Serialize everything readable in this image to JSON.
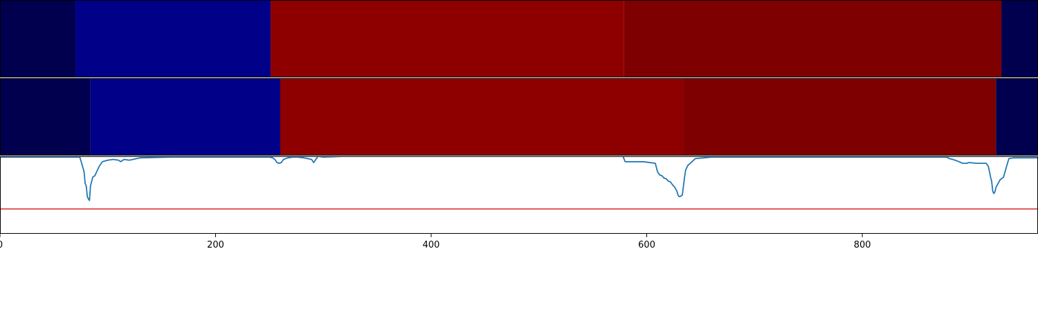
{
  "chart_data": {
    "type": "heatmap",
    "title": "",
    "xlabel": "",
    "ylabel": "",
    "xlim": [
      0,
      963
    ],
    "xticks": [
      0,
      200,
      400,
      600,
      800
    ],
    "xtick_labels": [
      "0",
      "200",
      "400",
      "600",
      "800"
    ],
    "segment_rows": [
      {
        "segments": [
          {
            "start": 0,
            "end": 70,
            "color": "#00004e"
          },
          {
            "start": 70,
            "end": 251,
            "color": "#000088"
          },
          {
            "start": 251,
            "end": 579,
            "color": "#8e0000"
          },
          {
            "start": 579,
            "end": 929,
            "color": "#7f0000"
          },
          {
            "start": 929,
            "end": 963,
            "color": "#00004e"
          }
        ]
      },
      {
        "segments": [
          {
            "start": 0,
            "end": 84,
            "color": "#00004e"
          },
          {
            "start": 84,
            "end": 260,
            "color": "#000088"
          },
          {
            "start": 260,
            "end": 634,
            "color": "#8e0000"
          },
          {
            "start": 634,
            "end": 924,
            "color": "#7f0000"
          },
          {
            "start": 924,
            "end": 963,
            "color": "#00004e"
          }
        ]
      }
    ],
    "line_ylim": [
      0,
      1
    ],
    "threshold": {
      "value": 0.32,
      "color": "#d62728"
    },
    "series": [
      {
        "color": "#1f77b4",
        "x": [
          0,
          60,
          74,
          76,
          78,
          79,
          80,
          81,
          82,
          83,
          84,
          86,
          88,
          92,
          95,
          100,
          105,
          110,
          112,
          115,
          120,
          130,
          160,
          200,
          240,
          250,
          253,
          255,
          257,
          259,
          261,
          263,
          267,
          272,
          276,
          282,
          289,
          291,
          293,
          295,
          300,
          320,
          400,
          500,
          578,
          580,
          582,
          590,
          597,
          608,
          610,
          612,
          614,
          616,
          618,
          620,
          622,
          624,
          626,
          628,
          629,
          630,
          631,
          633,
          635,
          636,
          638,
          645,
          660,
          700,
          800,
          878,
          881,
          884,
          888,
          893,
          897,
          899,
          906,
          915,
          917,
          919,
          920,
          921,
          922,
          923,
          924,
          926,
          928,
          931,
          933,
          936,
          940,
          963
        ],
        "y": [
          0.99,
          0.99,
          0.99,
          0.9,
          0.8,
          0.65,
          0.62,
          0.48,
          0.45,
          0.43,
          0.62,
          0.73,
          0.75,
          0.87,
          0.93,
          0.95,
          0.96,
          0.95,
          0.93,
          0.96,
          0.95,
          0.98,
          0.99,
          0.99,
          0.99,
          0.99,
          0.98,
          0.96,
          0.92,
          0.91,
          0.92,
          0.96,
          0.98,
          0.99,
          0.99,
          0.98,
          0.96,
          0.92,
          0.96,
          1.0,
          0.99,
          1.0,
          1.0,
          1.0,
          1.0,
          0.93,
          0.93,
          0.93,
          0.93,
          0.91,
          0.8,
          0.76,
          0.75,
          0.72,
          0.71,
          0.68,
          0.67,
          0.63,
          0.6,
          0.55,
          0.5,
          0.48,
          0.48,
          0.5,
          0.72,
          0.82,
          0.88,
          0.97,
          0.99,
          0.99,
          0.99,
          0.99,
          0.97,
          0.96,
          0.94,
          0.91,
          0.91,
          0.92,
          0.91,
          0.91,
          0.87,
          0.73,
          0.68,
          0.55,
          0.52,
          0.54,
          0.6,
          0.65,
          0.7,
          0.73,
          0.83,
          0.97,
          0.98,
          0.98
        ]
      }
    ]
  }
}
